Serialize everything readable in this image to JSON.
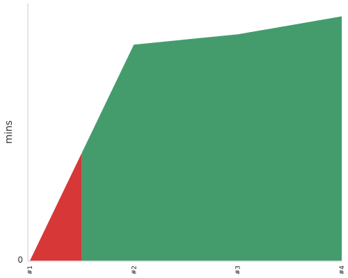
{
  "chart_data": {
    "type": "area",
    "ylabel": "mins",
    "x_ticks": [
      "#1",
      "#2",
      "#3",
      "#4"
    ],
    "y_ticks": [
      {
        "value": 0,
        "label": "0"
      }
    ],
    "xlim": [
      0,
      3
    ],
    "ylim": [
      0,
      1.0
    ],
    "grid": false,
    "series": [
      {
        "color": "#d73737",
        "points": [
          [
            0,
            0
          ],
          [
            0.5,
            0.42
          ],
          [
            0.5,
            0
          ]
        ]
      },
      {
        "color": "#449c6d",
        "points": [
          [
            0.5,
            0
          ],
          [
            0.5,
            0.42
          ],
          [
            1,
            0.84
          ],
          [
            1.5,
            0.86
          ],
          [
            2,
            0.88
          ],
          [
            3,
            0.95
          ],
          [
            3,
            0
          ]
        ]
      }
    ]
  }
}
